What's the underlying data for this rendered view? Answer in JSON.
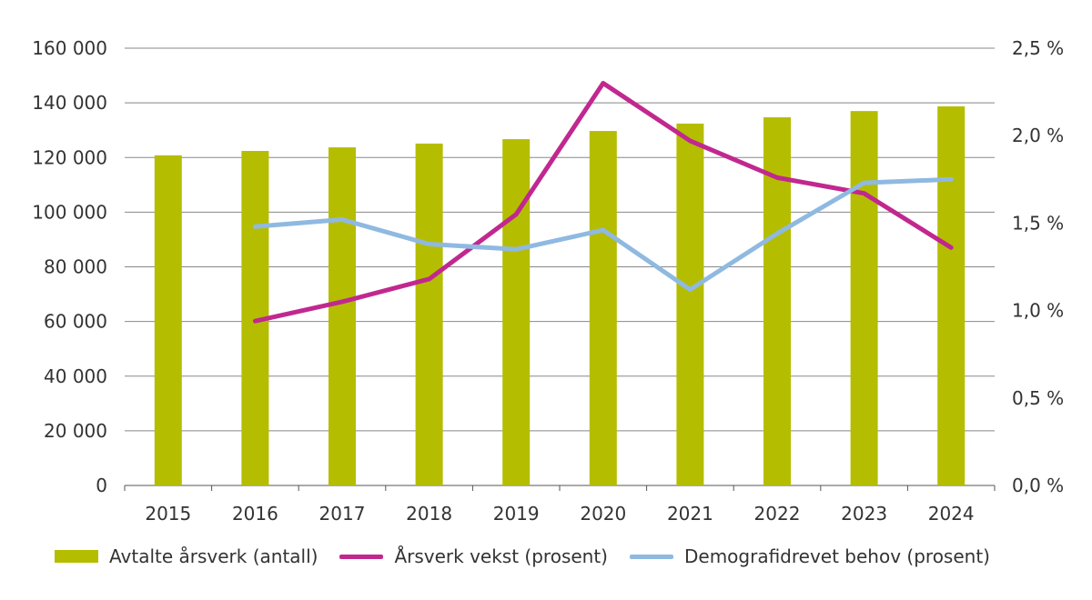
{
  "chart_data": {
    "type": "bar+line",
    "title": "",
    "categories": [
      "2015",
      "2016",
      "2017",
      "2018",
      "2019",
      "2020",
      "2021",
      "2022",
      "2023",
      "2024"
    ],
    "left_axis": {
      "ylim": [
        0,
        160000
      ],
      "ticks": [
        0,
        20000,
        40000,
        60000,
        80000,
        100000,
        120000,
        140000,
        160000
      ],
      "tick_labels": [
        "0",
        "20 000",
        "40 000",
        "60 000",
        "80 000",
        "100 000",
        "120 000",
        "140 000",
        "160 000"
      ]
    },
    "right_axis": {
      "ylim": [
        0,
        2.5
      ],
      "ticks": [
        0,
        0.5,
        1.0,
        1.5,
        2.0,
        2.5
      ],
      "tick_labels": [
        "0,0 %",
        "0,5 %",
        "1,0 %",
        "1,5 %",
        "2,0 %",
        "2,5 %"
      ]
    },
    "grid": true,
    "legend_position": "bottom",
    "series": [
      {
        "name": "Avtalte årsverk (antall)",
        "type": "bar",
        "axis": "left",
        "color": "#b5bd00",
        "values": [
          120800,
          122400,
          123700,
          125100,
          126700,
          129700,
          132400,
          134700,
          137000,
          138700
        ]
      },
      {
        "name": "Årsverk vekst (prosent)",
        "type": "line",
        "axis": "right",
        "color": "#c1288f",
        "values": [
          null,
          0.94,
          1.05,
          1.18,
          1.55,
          2.3,
          1.97,
          1.76,
          1.67,
          1.36
        ]
      },
      {
        "name": "Demografidrevet behov (prosent)",
        "type": "line",
        "axis": "right",
        "color": "#8fb9e1",
        "values": [
          null,
          1.48,
          1.52,
          1.38,
          1.35,
          1.46,
          1.12,
          1.44,
          1.73,
          1.75
        ]
      }
    ]
  }
}
